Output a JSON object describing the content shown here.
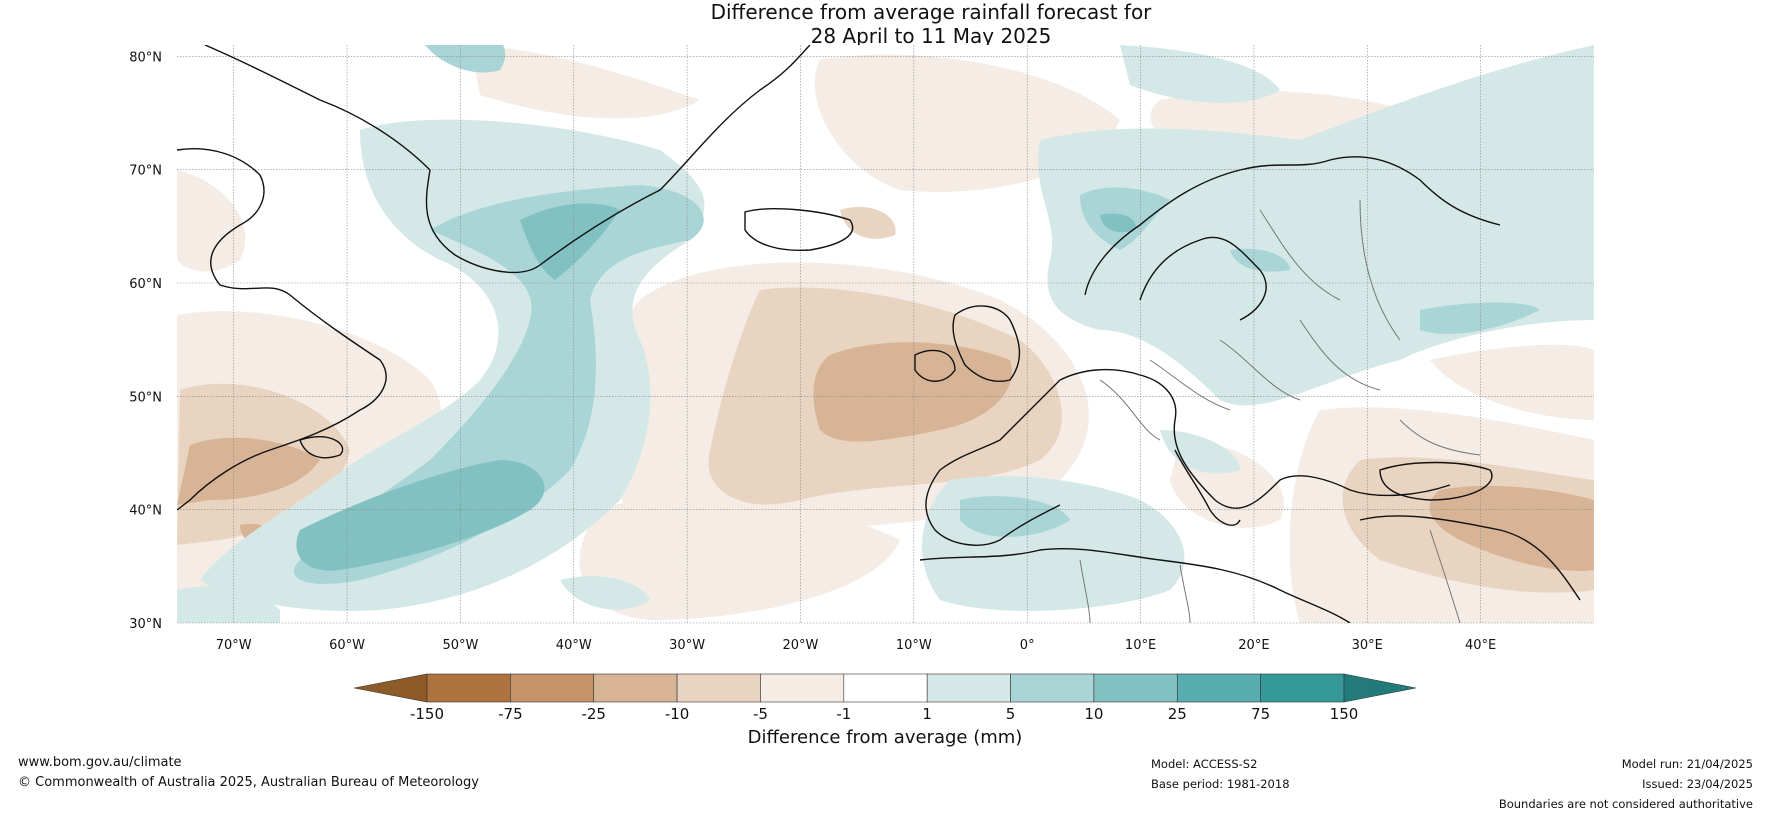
{
  "title": {
    "line1": "Difference from average rainfall forecast for",
    "line2": "28 April to 11 May 2025"
  },
  "map": {
    "lat_labels": [
      "80°N",
      "70°N",
      "60°N",
      "50°N",
      "40°N",
      "30°N"
    ],
    "lat_values": [
      80,
      70,
      60,
      50,
      40,
      30
    ],
    "lon_labels": [
      "70°W",
      "60°W",
      "50°W",
      "40°W",
      "30°W",
      "20°W",
      "10°W",
      "0°",
      "10°E",
      "20°E",
      "30°E",
      "40°E"
    ],
    "lon_values": [
      -70,
      -60,
      -50,
      -40,
      -30,
      -20,
      -10,
      0,
      10,
      20,
      30,
      40
    ],
    "extent": {
      "lon_min": -75,
      "lon_max": 50,
      "lat_min": 30,
      "lat_max": 81
    }
  },
  "colorbar": {
    "tick_labels": [
      "-150",
      "-75",
      "-25",
      "-10",
      "-5",
      "-1",
      "1",
      "5",
      "10",
      "25",
      "75",
      "150"
    ],
    "colors": [
      "#8e5a28",
      "#ad7440",
      "#c49468",
      "#d7b496",
      "#e8d4c1",
      "#f4ece5",
      "#ffffff",
      "#d4e8e7",
      "#aad5d6",
      "#82c1c2",
      "#58adaf",
      "#35999a",
      "#227a7b"
    ],
    "title": "Difference from average (mm)"
  },
  "footer": {
    "website": "www.bom.gov.au/climate",
    "copyright": "© Commonwealth of Australia 2025, Australian Bureau of Meteorology",
    "model": "Model: ACCESS-S2",
    "base_period": "Base period: 1981-2018",
    "model_run": "Model run: 21/04/2025",
    "issued": "Issued: 23/04/2025",
    "disclaimer": "Boundaries are not considered authoritative"
  }
}
